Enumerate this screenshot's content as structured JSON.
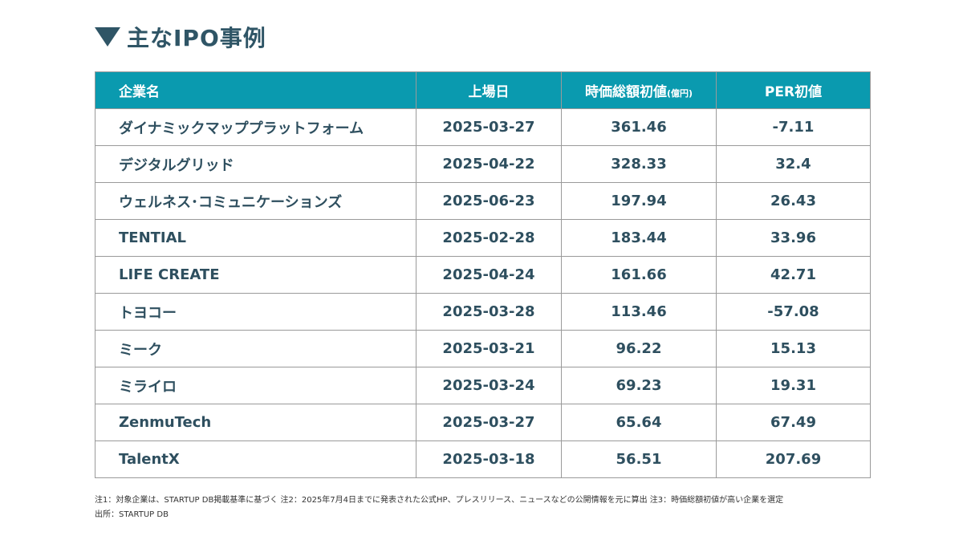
{
  "title": "主なIPO事例",
  "table": {
    "headers": {
      "company": "企業名",
      "listing_date": "上場日",
      "market_cap": "時価総額初値",
      "market_cap_unit": "(億円)",
      "per": "PER初値"
    },
    "rows": [
      {
        "company": "ダイナミックマッププラットフォーム",
        "date": "2025-03-27",
        "cap": "361.46",
        "per": "-7.11"
      },
      {
        "company": "デジタルグリッド",
        "date": "2025-04-22",
        "cap": "328.33",
        "per": "32.4"
      },
      {
        "company": "ウェルネス･コミュニケーションズ",
        "date": "2025-06-23",
        "cap": "197.94",
        "per": "26.43"
      },
      {
        "company": "TENTIAL",
        "date": "2025-02-28",
        "cap": "183.44",
        "per": "33.96"
      },
      {
        "company": "LIFE CREATE",
        "date": "2025-04-24",
        "cap": "161.66",
        "per": "42.71"
      },
      {
        "company": "トヨコー",
        "date": "2025-03-28",
        "cap": "113.46",
        "per": "-57.08"
      },
      {
        "company": "ミーク",
        "date": "2025-03-21",
        "cap": "96.22",
        "per": "15.13"
      },
      {
        "company": "ミライロ",
        "date": "2025-03-24",
        "cap": "69.23",
        "per": "19.31"
      },
      {
        "company": "ZenmuTech",
        "date": "2025-03-27",
        "cap": "65.64",
        "per": "67.49"
      },
      {
        "company": "TalentX",
        "date": "2025-03-18",
        "cap": "56.51",
        "per": "207.69"
      }
    ]
  },
  "notes": {
    "line1": "注1：対象企業は、STARTUP DB掲載基準に基づく 注2：2025年7月4日までに発表された公式HP、プレスリリース、ニュースなどの公開情報を元に算出 注3：時価総額初値が高い企業を選定",
    "line2": "出所：STARTUP DB"
  },
  "colors": {
    "header_bg": "#0a9aaf",
    "text": "#2e4f5f",
    "title": "#2f5566"
  },
  "icons": {
    "title_marker": "down-triangle-icon"
  }
}
